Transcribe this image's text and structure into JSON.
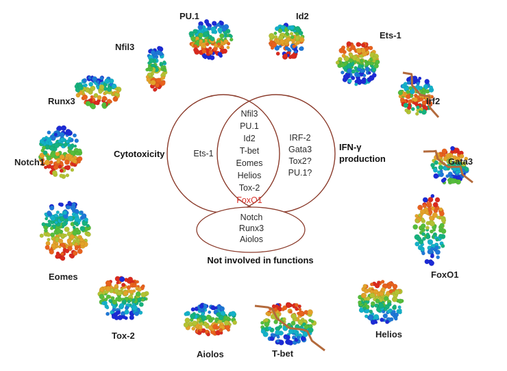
{
  "colors": {
    "ring_stroke": "#8a3a2a",
    "highlight_text": "#d8322a",
    "palette": [
      "#1c2bd6",
      "#1e78d8",
      "#14b1c9",
      "#16b27e",
      "#55bd3c",
      "#b3c233",
      "#e3a22a",
      "#e8621e",
      "#da2a1e"
    ]
  },
  "venn": {
    "left_label": "Cytotoxicity",
    "right_label_line1": "IFN-γ",
    "right_label_line2": "production",
    "bottom_label": "Not involved in functions",
    "left_only": [
      "Ets-1"
    ],
    "both": [
      "Nfil3",
      "PU.1",
      "Id2",
      "T-bet",
      "Eomes",
      "Helios",
      "Tox-2",
      "FoxO1"
    ],
    "both_highlight": "FoxO1",
    "right_only": [
      "IRF-2",
      "Gata3",
      "Tox2?",
      "PU.1?"
    ],
    "none": [
      "Notch",
      "Runx3",
      "Aiolos"
    ]
  },
  "proteins": {
    "pu1": "PU.1",
    "id2": "Id2",
    "ets1": "Ets-1",
    "nfil3": "Nfil3",
    "irf2": "Irf2",
    "runx3": "Runx3",
    "gata3": "Gata3",
    "notch1": "Notch1",
    "foxo1": "FoxO1",
    "eomes": "Eomes",
    "helios": "Helios",
    "tox2": "Tox-2",
    "tbet": "T-bet",
    "aiolos": "Aiolos"
  }
}
